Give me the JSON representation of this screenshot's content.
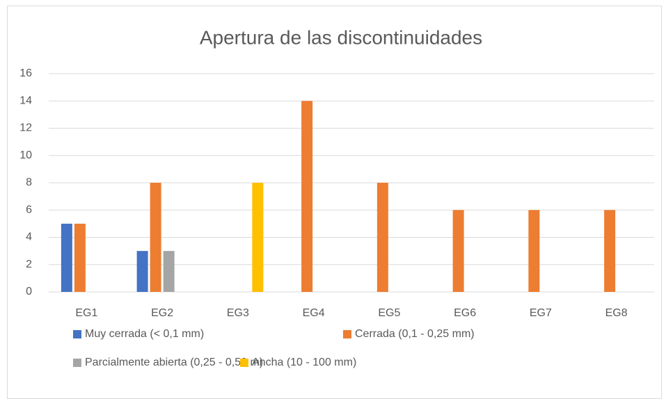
{
  "chart_data": {
    "type": "bar",
    "title": "Apertura de las discontinuidades",
    "categories": [
      "EG1",
      "EG2",
      "EG3",
      "EG4",
      "EG5",
      "EG6",
      "EG7",
      "EG8"
    ],
    "series": [
      {
        "name": "Muy cerrada (< 0,1 mm)",
        "color": "#4472c4",
        "values": [
          5,
          3,
          0,
          0,
          0,
          0,
          0,
          0
        ]
      },
      {
        "name": "Cerrada (0,1 - 0,25 mm)",
        "color": "#ed7d31",
        "values": [
          5,
          8,
          0,
          14,
          8,
          6,
          6,
          6
        ]
      },
      {
        "name": "Parcialmente abierta (0,25 - 0,50 m)",
        "color": "#a5a5a5",
        "values": [
          0,
          3,
          0,
          0,
          0,
          0,
          0,
          0
        ]
      },
      {
        "name": "Ancha (10 - 100 mm)",
        "color": "#ffc000",
        "values": [
          0,
          0,
          8,
          0,
          0,
          0,
          0,
          0
        ]
      }
    ],
    "ylim": [
      0,
      16
    ],
    "yticks": [
      0,
      2,
      4,
      6,
      8,
      10,
      12,
      14,
      16
    ],
    "grid": true,
    "legend": "bottom"
  }
}
